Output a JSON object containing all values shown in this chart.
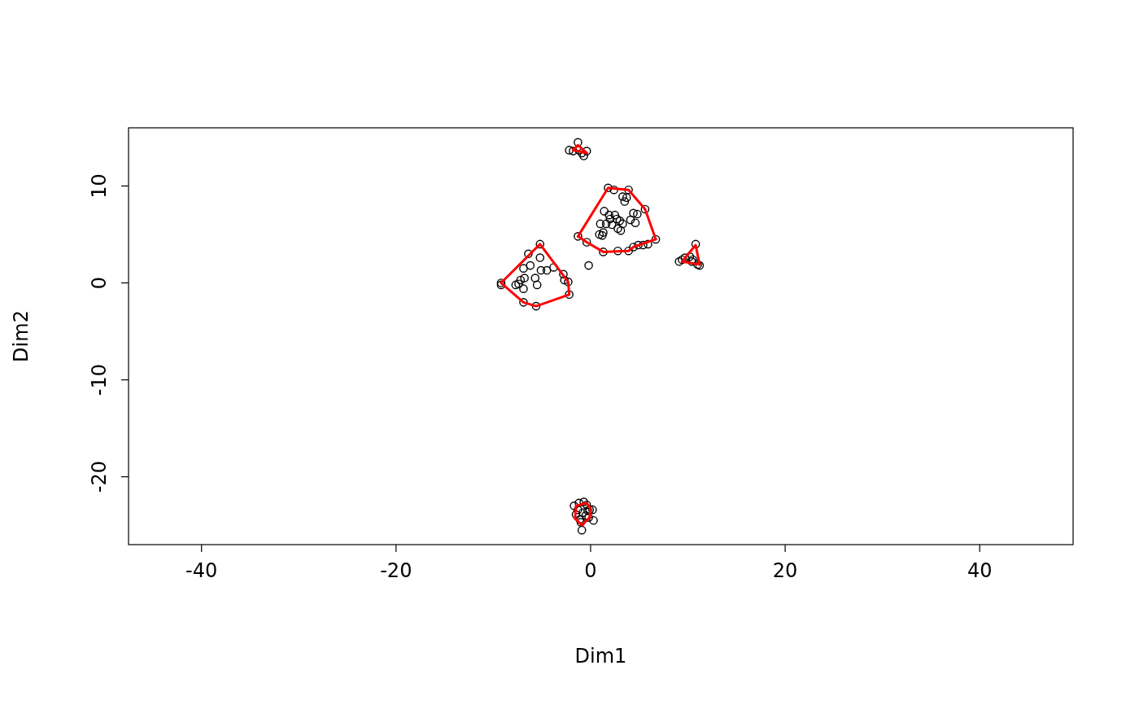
{
  "chart_data": {
    "type": "scatter",
    "xlabel": "Dim1",
    "ylabel": "Dim2",
    "xlim": [
      -47.5,
      49.6
    ],
    "ylim": [
      -27,
      16
    ],
    "xticks": [
      -40,
      -20,
      0,
      20,
      40
    ],
    "yticks": [
      -20,
      -10,
      0,
      10
    ],
    "grid": false,
    "marker": "circle",
    "series": [
      {
        "color": "#000000",
        "x": [
          -9.2,
          -9.2,
          -7.7,
          -7.4,
          -7.2,
          -6.9,
          -6.8,
          -6.4,
          -6.2,
          -5.7,
          -5.5,
          -5.2,
          -5.2,
          -5.1,
          -4.5,
          -3.8,
          -2.8,
          -2.7,
          -2.3,
          -2.2,
          -5.6,
          -6.9,
          -6.9,
          -1.3,
          -0.4,
          1.3,
          1.8,
          2.4,
          3.9,
          5.6,
          6.7,
          5.9,
          5.4,
          4.9,
          4.4,
          3.9,
          2.8,
          -0.2,
          1.0,
          1.4,
          1.9,
          2.0,
          2.2,
          2.5,
          2.7,
          3.0,
          3.3,
          3.5,
          3.7,
          3.3,
          4.1,
          4.6,
          4.8,
          0.9,
          1.3,
          1.6,
          2.8,
          3.1,
          4.4,
          1.2,
          9.1,
          9.4,
          9.7,
          10.2,
          10.5,
          10.8,
          11.0,
          11.2,
          10.4,
          -2.2,
          -1.8,
          -1.3,
          -1.2,
          -0.7,
          -0.4,
          -0.9,
          -1.7,
          -1.5,
          -1.1,
          -0.9,
          -0.7,
          -0.4,
          -0.1,
          0.2,
          0.3,
          -1.3,
          -0.8,
          -0.5,
          -0.2,
          -0.3,
          -1.0,
          -1.2
        ],
        "values": [
          0,
          -0.2,
          -0.2,
          -0.1,
          0.3,
          1.5,
          0.5,
          3.0,
          1.8,
          0.5,
          -0.2,
          4.0,
          2.6,
          1.3,
          1.3,
          1.6,
          0.9,
          0.3,
          0.1,
          -1.2,
          -2.4,
          -2.0,
          -0.6,
          4.8,
          4.2,
          3.2,
          9.8,
          9.6,
          9.6,
          7.6,
          4.5,
          4.0,
          3.9,
          3.9,
          3.7,
          3.3,
          3.3,
          1.8,
          6.1,
          7.4,
          7.0,
          6.6,
          6.0,
          7.0,
          6.6,
          6.4,
          8.9,
          8.4,
          8.8,
          6.1,
          6.5,
          6.2,
          7.1,
          5.0,
          5.2,
          6.1,
          5.6,
          5.4,
          7.2,
          4.9,
          2.2,
          2.4,
          2.6,
          2.7,
          2.4,
          4.0,
          1.9,
          1.8,
          2.2,
          13.7,
          13.6,
          14.5,
          13.7,
          13.1,
          13.6,
          13.4,
          -23.0,
          -23.9,
          -24.4,
          -25.5,
          -22.6,
          -22.9,
          -23.4,
          -23.4,
          -24.5,
          -23.4,
          -23.7,
          -24.0,
          -24.2,
          -23.5,
          -24.7,
          -22.7
        ]
      },
      {
        "type": "line",
        "marker": "none",
        "color": "#ff0000",
        "x": [
          -9.2,
          -5.2,
          -2.3,
          -2.2
        ],
        "values": [
          0,
          4.0,
          0.1,
          -1.2
        ]
      },
      {
        "type": "line",
        "marker": "none",
        "color": "#ff0000",
        "x": [
          -9.2,
          -6.9,
          -5.6,
          -2.2
        ],
        "values": [
          0,
          -2.0,
          -2.4,
          -1.2
        ]
      },
      {
        "type": "line",
        "marker": "none",
        "color": "#ff0000",
        "x": [
          -1.3,
          1.8,
          3.9,
          5.6,
          6.7
        ],
        "values": [
          4.8,
          9.8,
          9.6,
          7.6,
          4.5
        ]
      },
      {
        "type": "line",
        "marker": "none",
        "color": "#ff0000",
        "x": [
          -1.3,
          -0.4,
          1.3,
          3.9,
          4.4,
          6.7
        ],
        "values": [
          4.8,
          4.2,
          3.2,
          3.3,
          3.7,
          4.5
        ]
      },
      {
        "type": "line",
        "marker": "none",
        "color": "#ff0000",
        "x": [
          9.4,
          10.8,
          11.2
        ],
        "values": [
          2.2,
          3.9,
          1.9
        ]
      },
      {
        "type": "line",
        "marker": "none",
        "color": "#ff0000",
        "x": [
          9.4,
          11.2
        ],
        "values": [
          2.2,
          1.9
        ]
      },
      {
        "type": "line",
        "marker": "none",
        "color": "#ff0000",
        "x": [
          -1.8,
          -1.3,
          -0.4
        ],
        "values": [
          13.7,
          14.2,
          13.4
        ]
      },
      {
        "type": "line",
        "marker": "none",
        "color": "#ff0000",
        "x": [
          -1.8,
          -0.4
        ],
        "values": [
          13.7,
          13.4
        ]
      },
      {
        "type": "line",
        "marker": "none",
        "color": "#ff0000",
        "x": [
          -1.6,
          -1.5,
          -0.4,
          0.0
        ],
        "values": [
          -24.3,
          -23.0,
          -22.7,
          -23.3
        ]
      },
      {
        "type": "line",
        "marker": "none",
        "color": "#ff0000",
        "x": [
          -1.6,
          -0.9,
          -0.1,
          0.0
        ],
        "values": [
          -24.3,
          -25.0,
          -24.2,
          -23.3
        ]
      }
    ]
  }
}
